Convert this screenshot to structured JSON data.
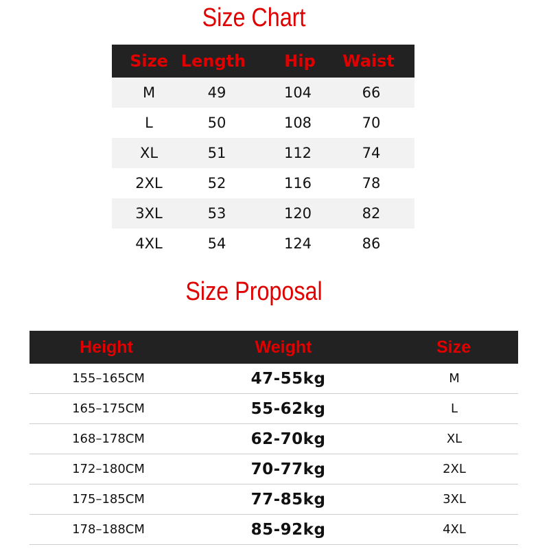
{
  "size_chart": {
    "title": "Size Chart",
    "headers": [
      "Size",
      "Length",
      "Hip",
      "Waist"
    ],
    "rows": [
      [
        "M",
        "49",
        "104",
        "66"
      ],
      [
        "L",
        "50",
        "108",
        "70"
      ],
      [
        "XL",
        "51",
        "112",
        "74"
      ],
      [
        "2XL",
        "52",
        "116",
        "78"
      ],
      [
        "3XL",
        "53",
        "120",
        "82"
      ],
      [
        "4XL",
        "54",
        "124",
        "86"
      ]
    ]
  },
  "size_proposal": {
    "title": "Size Proposal",
    "headers": [
      "Height",
      "Weight",
      "Size"
    ],
    "rows": [
      [
        "155–165CM",
        "47-55kg",
        "M"
      ],
      [
        "165–175CM",
        "55-62kg",
        "L"
      ],
      [
        "168–178CM",
        "62-70kg",
        "XL"
      ],
      [
        "172–180CM",
        "70-77kg",
        "2XL"
      ],
      [
        "175–185CM",
        "77-85kg",
        "3XL"
      ],
      [
        "178–188CM",
        "85-92kg",
        "4XL"
      ]
    ]
  },
  "colors": {
    "accent": "#e00000",
    "header_bg": "#222222",
    "stripe": "#f2f2f2"
  }
}
